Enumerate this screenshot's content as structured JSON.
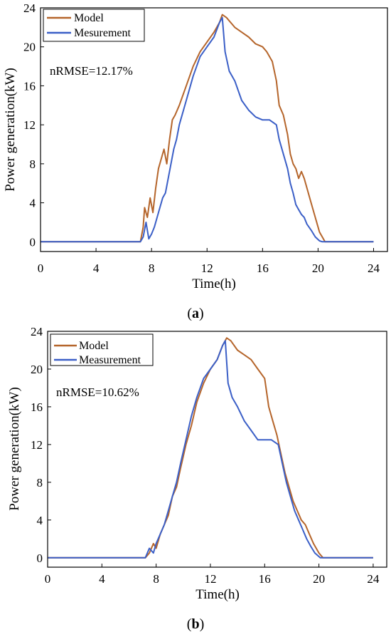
{
  "colors": {
    "model": "#B5652B",
    "measurement": "#3B5FC7",
    "axis": "#000000"
  },
  "chart_data": [
    {
      "type": "line",
      "caption": "a",
      "annotation": "nRMSE=12.17%",
      "xlabel": "Time(h)",
      "ylabel": "Power generation(kW)",
      "xlim": [
        0,
        25
      ],
      "ylim": [
        -1,
        24
      ],
      "xticks": [
        "0",
        "4",
        "8",
        "12",
        "16",
        "20",
        "24"
      ],
      "yticks": [
        "0",
        "4",
        "8",
        "12",
        "16",
        "20",
        "24"
      ],
      "legend_position": "top-left",
      "grid": false,
      "series": [
        {
          "name": "Model",
          "color": "#B5652B",
          "x": [
            0,
            7.2,
            7.4,
            7.5,
            7.7,
            7.9,
            8.1,
            8.3,
            8.5,
            8.7,
            8.9,
            9.1,
            9.3,
            9.5,
            9.7,
            10,
            10.5,
            11,
            11.5,
            12,
            12.5,
            12.9,
            13.1,
            13.4,
            13.7,
            14,
            14.5,
            15,
            15.5,
            16,
            16.3,
            16.7,
            17,
            17.2,
            17.5,
            17.8,
            18,
            18.2,
            18.4,
            18.6,
            18.8,
            19,
            19.2,
            19.5,
            19.8,
            20.1,
            20.3,
            20.5,
            24
          ],
          "y": [
            0,
            0,
            1.5,
            3.5,
            2.5,
            4.5,
            3,
            5.5,
            7.5,
            8.5,
            9.5,
            8,
            10.5,
            12.5,
            13,
            14,
            16,
            18,
            19.5,
            20.5,
            21.5,
            22.5,
            23.3,
            23,
            22.5,
            22,
            21.5,
            21,
            20.3,
            20,
            19.5,
            18.5,
            16.5,
            14,
            13,
            11,
            9,
            8,
            7.5,
            6.5,
            7.2,
            6.5,
            5.5,
            4,
            2.5,
            1,
            0.5,
            0,
            0
          ]
        },
        {
          "name": "Mesurement",
          "color": "#3B5FC7",
          "x": [
            0,
            7.2,
            7.4,
            7.6,
            7.8,
            8.0,
            8.2,
            8.4,
            8.6,
            8.8,
            9.0,
            9.2,
            9.4,
            9.6,
            9.8,
            10,
            10.5,
            11,
            11.5,
            12,
            12.5,
            12.9,
            13.1,
            13.3,
            13.6,
            14,
            14.5,
            15,
            15.5,
            16,
            16.5,
            17,
            17.2,
            17.5,
            17.8,
            18,
            18.2,
            18.4,
            18.6,
            18.8,
            19,
            19.2,
            19.5,
            19.8,
            20.1,
            20.3,
            24
          ],
          "y": [
            0,
            0,
            0.5,
            2,
            0.3,
            0.8,
            1.5,
            2.5,
            3.5,
            4.5,
            5,
            6.5,
            8,
            9.5,
            10.5,
            12,
            14.5,
            17,
            19,
            20,
            21,
            22.5,
            23,
            19.5,
            17.5,
            16.5,
            14.5,
            13.5,
            12.8,
            12.5,
            12.5,
            12,
            10.5,
            9,
            7.5,
            6,
            5,
            3.8,
            3.3,
            2.8,
            2.5,
            1.8,
            1.2,
            0.5,
            0.1,
            0,
            0
          ]
        }
      ]
    },
    {
      "type": "line",
      "caption": "b",
      "annotation": "nRMSE=10.62%",
      "xlabel": "Time(h)",
      "ylabel": "Power generation(kW)",
      "xlim": [
        0,
        25
      ],
      "ylim": [
        -1,
        24
      ],
      "xticks": [
        "0",
        "4",
        "8",
        "12",
        "16",
        "20",
        "24"
      ],
      "yticks": [
        "0",
        "4",
        "8",
        "12",
        "16",
        "20",
        "24"
      ],
      "legend_position": "top-left",
      "grid": false,
      "series": [
        {
          "name": "Model",
          "color": "#B5652B",
          "x": [
            0,
            7.2,
            7.5,
            7.8,
            8.0,
            8.3,
            8.6,
            8.9,
            9.2,
            9.5,
            9.8,
            10.2,
            10.6,
            11,
            11.5,
            12,
            12.5,
            12.9,
            13.2,
            13.5,
            14,
            14.5,
            15,
            15.5,
            16,
            16.3,
            16.6,
            16.9,
            17.2,
            17.5,
            17.8,
            18.1,
            18.4,
            18.7,
            19,
            19.3,
            19.6,
            20.0,
            20.3,
            24
          ],
          "y": [
            0,
            0,
            0.5,
            1.5,
            1,
            2.5,
            3.5,
            4.5,
            6.5,
            7.5,
            9.5,
            12,
            14,
            16.5,
            18.5,
            20,
            21,
            22.5,
            23.3,
            23,
            22,
            21.5,
            21,
            20,
            19,
            16,
            14.5,
            13,
            11,
            9,
            7.5,
            6,
            5,
            4,
            3.5,
            2.5,
            1.5,
            0.5,
            0,
            0
          ]
        },
        {
          "name": "Measurement",
          "color": "#3B5FC7",
          "x": [
            0,
            7.2,
            7.5,
            7.8,
            8.0,
            8.3,
            8.6,
            8.9,
            9.2,
            9.5,
            9.8,
            10.2,
            10.6,
            11,
            11.5,
            12,
            12.5,
            12.9,
            13.1,
            13.3,
            13.6,
            14,
            14.5,
            15,
            15.5,
            16,
            16.5,
            17,
            17.3,
            17.6,
            17.9,
            18.2,
            18.5,
            18.8,
            19.1,
            19.4,
            19.7,
            20.1,
            20.3,
            24
          ],
          "y": [
            0,
            0,
            1,
            0.5,
            1.5,
            2.5,
            3.5,
            5,
            6.5,
            8,
            10,
            12.5,
            15,
            17,
            19,
            20,
            21,
            22.5,
            23,
            18.5,
            17,
            16,
            14.5,
            13.5,
            12.5,
            12.5,
            12.5,
            12,
            10,
            8,
            6.5,
            5,
            4,
            3,
            2,
            1.2,
            0.5,
            0,
            0,
            0
          ]
        }
      ]
    }
  ]
}
